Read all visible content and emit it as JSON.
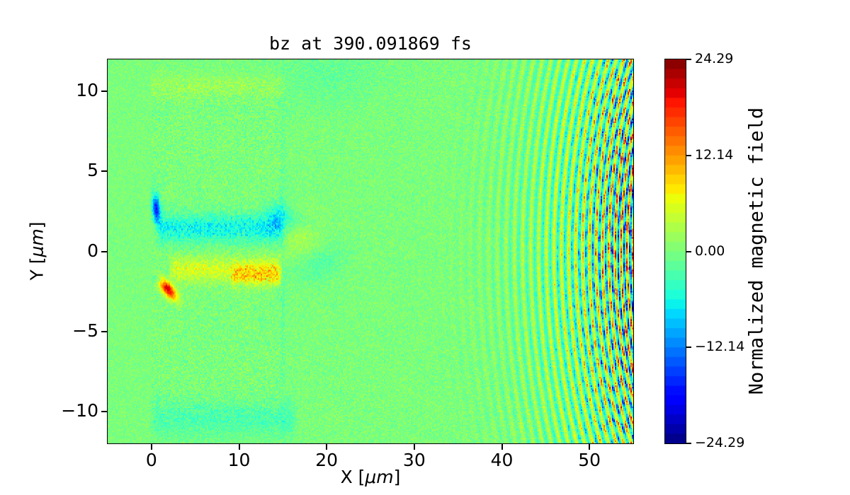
{
  "chart_data": {
    "type": "heatmap",
    "title": "bz at 390.091869 fs",
    "xlabel": {
      "pre": "X [",
      "mu": "μm",
      "post": "]"
    },
    "ylabel": {
      "pre": "Y [",
      "mu": "μm",
      "post": "]"
    },
    "x_range": [
      -5,
      55
    ],
    "y_range": [
      -12,
      12
    ],
    "x_ticks": {
      "values": [
        0,
        10,
        20,
        30,
        40,
        50
      ],
      "labels": [
        "0",
        "10",
        "20",
        "30",
        "40",
        "50"
      ]
    },
    "y_ticks": {
      "values": [
        10,
        5,
        0,
        -5,
        -10
      ],
      "labels": [
        "10",
        "5",
        "0",
        "−5",
        "−10"
      ]
    },
    "grid": false,
    "legend": null,
    "background_value_color": "#7bff7e",
    "colorbar": {
      "label": "Normalized magnetic field",
      "ticks": {
        "values": [
          24.29,
          12.14,
          0,
          -12.14,
          -24.29
        ],
        "labels": [
          "24.29",
          "12.14",
          "0.00",
          "−12.14",
          "−24.29"
        ]
      },
      "clim": [
        -24.29,
        24.29
      ],
      "colormap": "jet",
      "steps": 40
    },
    "field": {
      "description": "bz component of magnetic field from a laser-plasma PIC simulation at t = 390.091869 fs. Noisy near-zero (light green) background; plasma target slab at x = 0-15 um with faint edge bands at y = +10.4 and y = -10.5 um and a faint right edge at x = 15 um; laser-drilled channel with a negative (cyan) lobe centered y = +1.4 um and a positive (yellow-orange, speckled) lobe centered y = -1.2 um over x = 0-15 um; intense localized spots bz = -17 at (0.6, 2.7) and bz = +21 at (1.9, -2.4); chirped curved laser wavefront fringes (alternating +/- arcs, concave toward +x, wavelength ~1.25 to ~0.66 um) growing in amplitude from x = 28 um to the right edge x = 55 um.",
      "seed": 20,
      "noise": {
        "vacuum_amp": 1.3,
        "target_amp": 2.3,
        "ambient_amp": 1.7,
        "target_box": [
          0,
          15.2,
          -10.7,
          10.7
        ]
      },
      "features": [
        {
          "name": "upper-channel-cyan",
          "type": "bar",
          "x0": 0.3,
          "x1": 15.2,
          "cy": 1.45,
          "sy": 0.62,
          "amp": -6.2,
          "soft": 0.8,
          "speckle": 0.35
        },
        {
          "name": "lower-channel-yellow",
          "type": "bar",
          "x0": 1.8,
          "x1": 15.2,
          "cy": -1.15,
          "sy": 0.55,
          "amp": 5.2,
          "soft": 0.9,
          "speckle": 0.35
        },
        {
          "name": "lower-channel-hotspots",
          "type": "bar",
          "x0": 8.8,
          "x1": 15.0,
          "cy": -1.5,
          "sy": 0.45,
          "amp": 5.0,
          "soft": 0.6,
          "speckle": 0.85
        },
        {
          "name": "target-top-edge",
          "type": "bar",
          "x0": -0.2,
          "x1": 15.6,
          "cy": 10.35,
          "sy": 0.5,
          "amp": 1.7,
          "soft": 0.5,
          "speckle": 0.3
        },
        {
          "name": "target-bottom-edge",
          "type": "bar",
          "x0": -0.3,
          "x1": 16.8,
          "cy": -10.5,
          "sy": 0.8,
          "amp": -2.8,
          "soft": 0.8,
          "speckle": 0.3
        },
        {
          "name": "target-right-edge",
          "type": "blob",
          "cx": 15.0,
          "cy": 0,
          "sx": 0.22,
          "sy": 11,
          "amp": -1.2,
          "rot": 0
        },
        {
          "name": "intense-negative-spot",
          "type": "blob",
          "cx": 0.55,
          "cy": 2.65,
          "sx": 0.3,
          "sy": 0.6,
          "amp": -17,
          "rot": 8
        },
        {
          "name": "intense-positive-spot",
          "type": "blob",
          "cx": 1.85,
          "cy": -2.35,
          "sx": 0.8,
          "sy": 0.3,
          "amp": 21,
          "rot": -28
        },
        {
          "name": "small-negative-dash",
          "type": "blob",
          "cx": 0.8,
          "cy": -1.8,
          "sx": 0.5,
          "sy": 0.2,
          "amp": -5,
          "rot": -20
        },
        {
          "name": "channel-exit-cyan",
          "type": "blob",
          "cx": 14.5,
          "cy": 2.0,
          "sx": 1.0,
          "sy": 0.8,
          "amp": -4.5,
          "rot": 0
        },
        {
          "name": "upper-channel-tail",
          "type": "blob",
          "cx": 16.5,
          "cy": 1.9,
          "sx": 1.6,
          "sy": 0.5,
          "amp": -3.0,
          "rot": -8
        },
        {
          "name": "exit-plume-yellow",
          "type": "blob",
          "cx": 17.0,
          "cy": 1.1,
          "sx": 1.7,
          "sy": 1.0,
          "amp": 3.0,
          "rot": 0
        },
        {
          "name": "exit-plume-teal",
          "type": "blob",
          "cx": 19.2,
          "cy": -0.8,
          "sx": 2.0,
          "sy": 0.75,
          "amp": -2.4,
          "rot": 10
        },
        {
          "name": "upper-right-haze",
          "type": "blob",
          "cx": 20,
          "cy": 11,
          "sx": 4.5,
          "sy": 1.4,
          "amp": -1.4,
          "rot": 0
        }
      ],
      "fringes": {
        "center_x": 75,
        "start_x": 28,
        "end_x": 55,
        "lambda_start": 1.25,
        "chirp": 0.022,
        "amp_max": 16,
        "amp_power": 2.5,
        "amp_speckle": 0.7,
        "crosshatch": {
          "start_x": 44,
          "ramp": 6,
          "depth": 0.45,
          "period_y": 1.2
        }
      }
    }
  }
}
